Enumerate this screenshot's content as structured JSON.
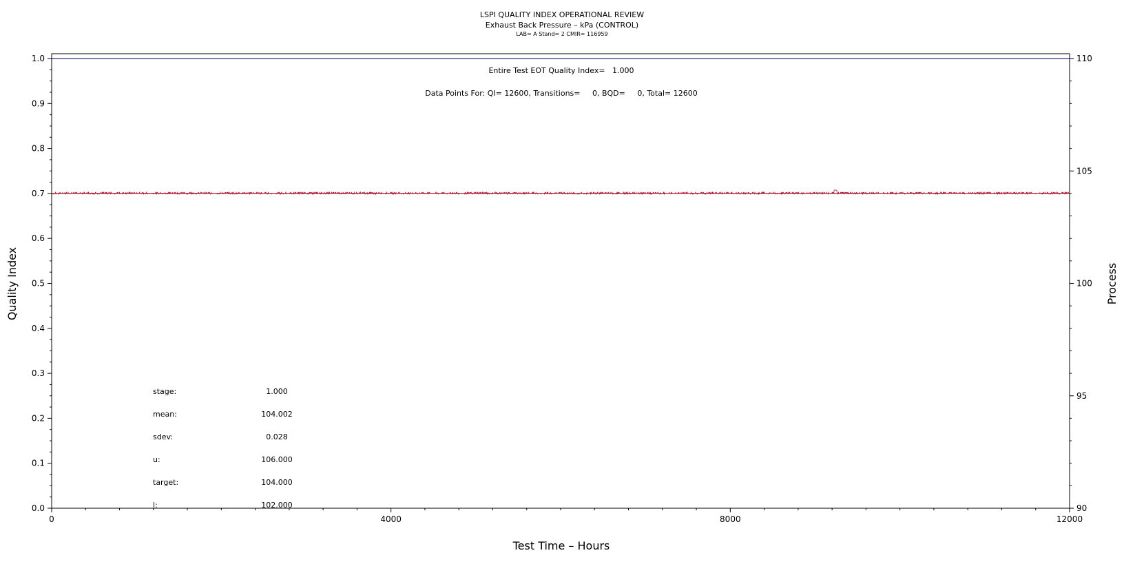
{
  "chart_data": {
    "type": "line",
    "title": "LSPI QUALITY INDEX OPERATIONAL REVIEW",
    "subtitle": "Exhaust Back Pressure – kPa (CONTROL)",
    "subtitle2": "LAB= A Stand= 2 CMIR= 116959",
    "xlabel": "Test Time – Hours",
    "ylabel_left": "Quality Index",
    "ylabel_right": "Process",
    "xlim": [
      0,
      12000
    ],
    "ylim_left": [
      0,
      1.0
    ],
    "ylim_right": [
      90,
      110
    ],
    "x_ticks": [
      "0",
      "4000",
      "8000",
      "12000"
    ],
    "y_left_ticks": [
      "0.0",
      "0.1",
      "0.2",
      "0.3",
      "0.4",
      "0.5",
      "0.6",
      "0.7",
      "0.8",
      "0.9",
      "1.0"
    ],
    "y_right_ticks": [
      "90",
      "95",
      "100",
      "105",
      "110"
    ],
    "annotations": {
      "quality_index": "Entire Test EOT Quality Index=   1.000",
      "data_points": "Data Points For: QI= 12600, Transitions=     0, BQD=     0, Total= 12600"
    },
    "stats": [
      {
        "label": "stage:",
        "value": "1.000"
      },
      {
        "label": "mean:",
        "value": "104.002"
      },
      {
        "label": "sdev:",
        "value": "0.028"
      },
      {
        "label": "u:",
        "value": "106.000"
      },
      {
        "label": "target:",
        "value": "104.000"
      },
      {
        "label": "l:",
        "value": "102.000"
      }
    ],
    "series": [
      {
        "axis": "left",
        "color": "#2a2a8a",
        "x": [
          0,
          12000
        ],
        "y": [
          1.0,
          1.0
        ]
      },
      {
        "axis": "right",
        "color": "#b0102a",
        "x": [
          0,
          12000
        ],
        "y": [
          104.0,
          104.0
        ]
      }
    ],
    "process_noise": {
      "mean": 104.002,
      "sdev": 0.028,
      "spike": {
        "x": 9240,
        "y": 104.15
      }
    }
  }
}
